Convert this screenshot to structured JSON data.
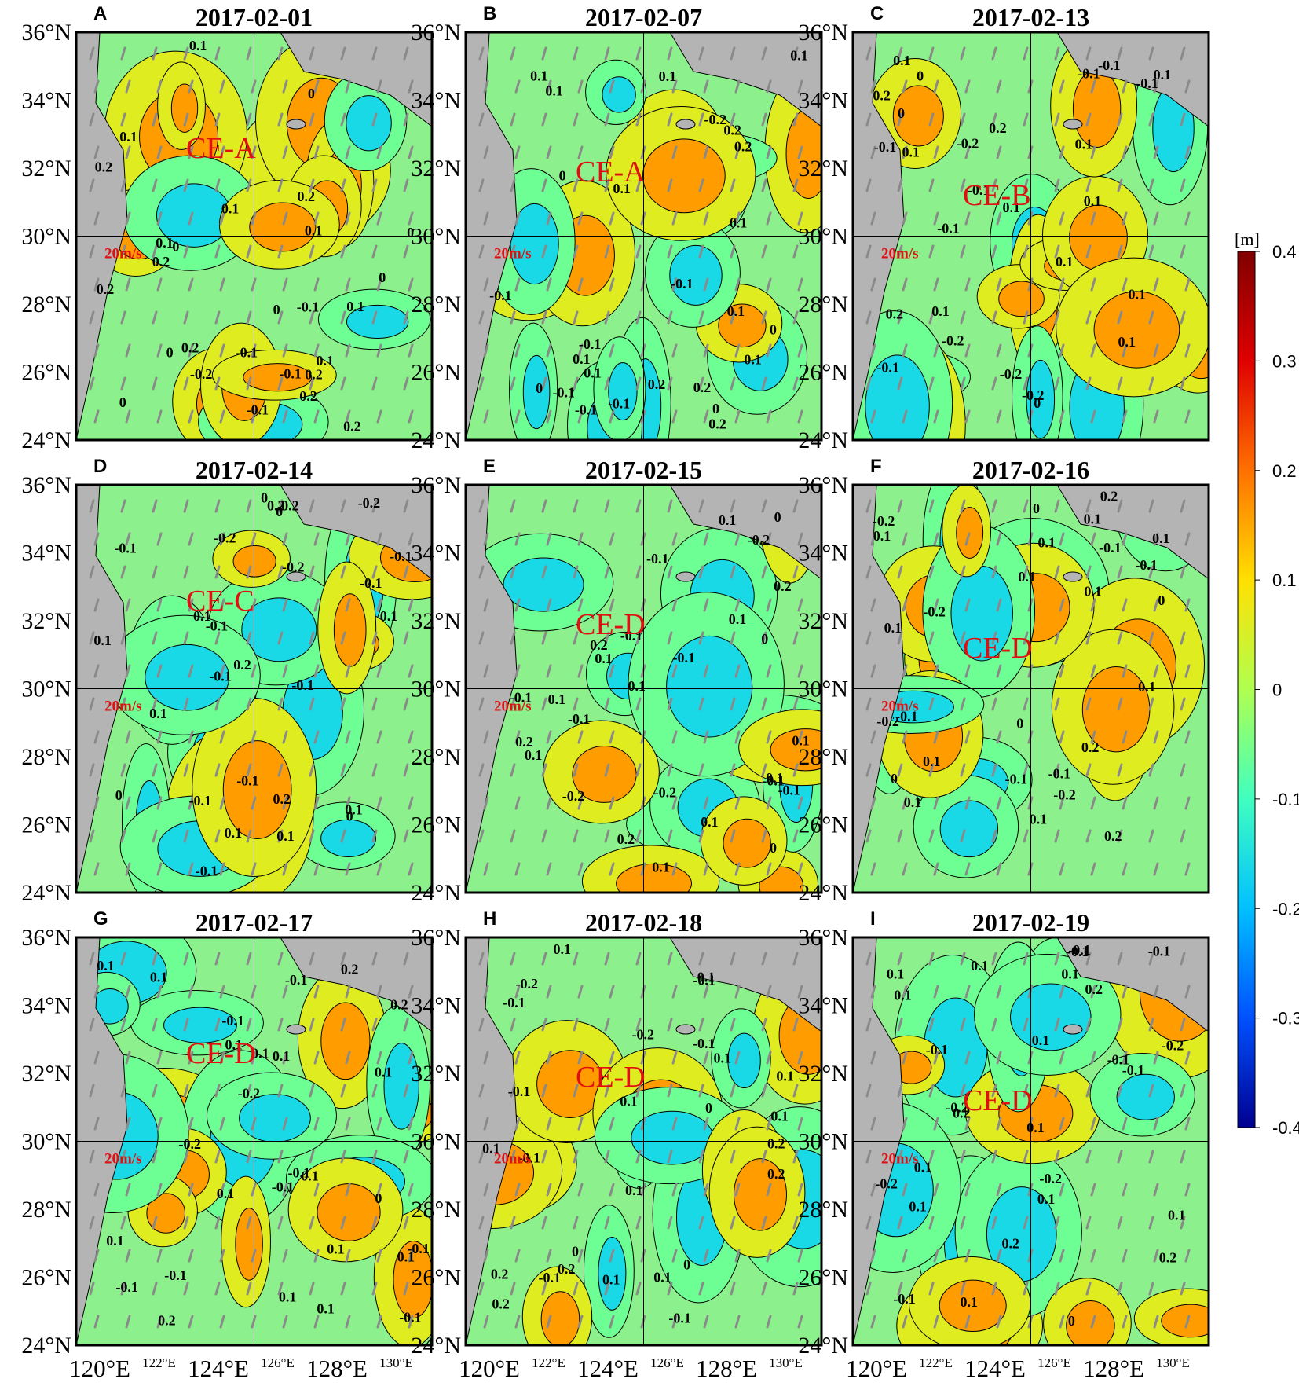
{
  "figure": {
    "latitude_labels": [
      "36°N",
      "34°N",
      "32°N",
      "30°N",
      "28°N",
      "26°N",
      "24°N"
    ],
    "longitude_labels": [
      {
        "text": "120°E",
        "size": "large"
      },
      {
        "text": "122°E",
        "size": "small"
      },
      {
        "text": "124°E",
        "size": "large"
      },
      {
        "text": "126°E",
        "size": "small"
      },
      {
        "text": "128°E",
        "size": "large"
      },
      {
        "text": "130°E",
        "size": "small"
      }
    ],
    "scale_label": "20m/s",
    "colorbar": {
      "unit": "[m]",
      "ticks": [
        "0.4",
        "0.3",
        "0.2",
        "0.1",
        "0",
        "-0.1",
        "-0.2",
        "-0.3",
        "-0.4"
      ],
      "range": [
        -0.4,
        0.4
      ],
      "colors": [
        "#00008f",
        "#0050ff",
        "#00c0ff",
        "#40ffc0",
        "#b0ff50",
        "#ffe000",
        "#ff7000",
        "#e00000",
        "#800000"
      ]
    },
    "panels": [
      {
        "id": "A",
        "date": "2017-02-01",
        "eddy": "CE-A",
        "values": [
          "-0.1",
          "0.1",
          "0",
          "0.2",
          "0.2",
          "0.1",
          "0.2",
          "0",
          "0.2",
          "0.2",
          "0",
          "0",
          "0.1",
          "-0.1",
          "-0.2",
          "0",
          "0.1",
          "0.2",
          "0.1",
          "0.2",
          "-0.1",
          "0.1",
          "0",
          "-0.1",
          "0.1",
          "0.2",
          "0"
        ]
      },
      {
        "id": "B",
        "date": "2017-02-07",
        "eddy": "CE-A",
        "values": [
          "-0.1",
          "0.1",
          "0.1",
          "0",
          "-0.1",
          "0.2",
          "0.1",
          "0.2",
          "-0.1",
          "-0.1",
          "0.1",
          "0",
          "-0.1",
          "0.1",
          "0",
          "0.2",
          "0.1",
          "-0.1",
          "0.2",
          "0.1",
          "0.1",
          "-0.2",
          "0.1",
          "0.2",
          "0.1",
          "0"
        ]
      },
      {
        "id": "C",
        "date": "2017-02-13",
        "eddy": "CE-B",
        "values": [
          "0.1",
          "0.2",
          "-0.1",
          "-0.1",
          "-0.2",
          "0.1",
          "0",
          "0.1",
          "-0.1",
          "-0.2",
          "0",
          "0.1",
          "-0.1",
          "-0.2",
          "0.2",
          "0.1",
          "0.2",
          "0.1",
          "0.1",
          "-0.1",
          "-0.2",
          "-0.1",
          "-0.1",
          "0.1",
          "0.1",
          "0.1",
          "0"
        ]
      },
      {
        "id": "D",
        "date": "2017-02-14",
        "eddy": "CE-C",
        "values": [
          "0.1",
          "-0.1",
          "0",
          "-0.1",
          "0.1",
          "-0.2",
          "-0.1",
          "0.2",
          "0",
          "-0.2",
          "0.2",
          "-0.1",
          "-0.1",
          "-0.1",
          "0.1",
          "0.1",
          "0",
          "0.2",
          "-0.1",
          "0.1",
          "-0.2",
          "-0.1",
          "0.2",
          "0.1",
          "-0.1",
          "0.1",
          "0"
        ]
      },
      {
        "id": "E",
        "date": "2017-02-15",
        "eddy": "CE-D",
        "values": [
          "0.2",
          "0.1",
          "-0.1",
          "0.1",
          "0.1",
          "0.1",
          "0",
          "-0.2",
          "0.1",
          "-0.1",
          "-0.1",
          "-0.1",
          "-0.1",
          "0.1",
          "0",
          "0.1",
          "0.2",
          "-0.1",
          "0.1",
          "0.2",
          "0.1",
          "-0.2",
          "0.2",
          "-0.1",
          "-0.2",
          "0.1",
          "0"
        ]
      },
      {
        "id": "F",
        "date": "2017-02-16",
        "eddy": "CE-D",
        "values": [
          "0.1",
          "-0.2",
          "0.1",
          "0.1",
          "0",
          "-0.2",
          "0.1",
          "-0.1",
          "0.1",
          "-0.1",
          "-0.1",
          "0.2",
          "0.2",
          "0",
          "0.1",
          "0.1",
          "0.1",
          "0.2",
          "-0.2",
          "-0.1",
          "-0.1",
          "0.1",
          "0.1",
          "0",
          "-0.2",
          "0.1",
          "0"
        ]
      },
      {
        "id": "G",
        "date": "2017-02-17",
        "eddy": "CE-D",
        "values": [
          "0.1",
          "0.1",
          "-0.2",
          "-0.1",
          "-0.1",
          "0.1",
          "0",
          "0.1",
          "-0.1",
          "-0.1",
          "0.1",
          "0.1",
          "0.2",
          "0.1",
          "-0.1",
          "0.1",
          "0.2",
          "-0.1",
          "0.1",
          "0.1",
          "-0.2",
          "-0.1",
          "0.1",
          "-0.1",
          "0.1",
          "0.1",
          "0.2"
        ]
      },
      {
        "id": "H",
        "date": "2017-02-18",
        "eddy": "CE-D",
        "values": [
          "0.2",
          "0.1",
          "0.1",
          "0.2",
          "0",
          "0.1",
          "-0.1",
          "0.2",
          "0",
          "-0.1",
          "0.1",
          "-0.1",
          "-0.2",
          "0.2",
          "0.1",
          "0.2",
          "0.1",
          "0.1",
          "-0.1",
          "-0.1",
          "-0.1",
          "0.1",
          "-0.1",
          "0.1",
          "0",
          "0.1",
          "-0.2"
        ]
      },
      {
        "id": "I",
        "date": "2017-02-19",
        "eddy": "CE-D",
        "values": [
          "0.1",
          "0.1",
          "0.2",
          "0.1",
          "-0.2",
          "0.2",
          "-0.1",
          "-0.2",
          "0.1",
          "-0.1",
          "0.1",
          "-0.2",
          "0.1",
          "-0.1",
          "0.1",
          "0.2",
          "0.1",
          "0.1",
          "-0.1",
          "-0.1",
          "-0.1",
          "0.1",
          "-0.1",
          "0",
          "0.2",
          "0.1",
          "-0.2"
        ]
      }
    ]
  }
}
